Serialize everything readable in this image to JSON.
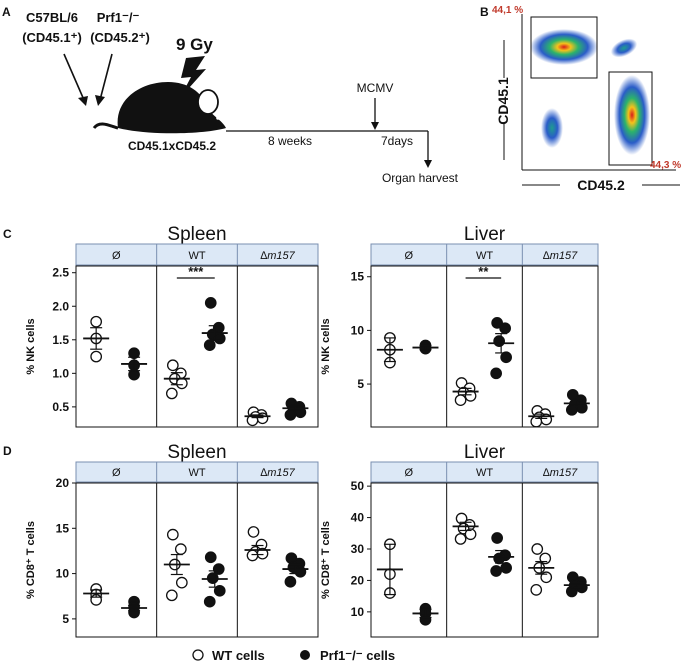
{
  "panel_letters": [
    "A",
    "B",
    "C",
    "D"
  ],
  "panelA": {
    "donor1_name": "C57BL/6",
    "donor1_marker": "(CD45.1⁺)",
    "donor2_name": "Prf1⁻/⁻",
    "donor2_marker": "(CD45.2⁺)",
    "irradiation": "9 Gy",
    "recipient": "CD45.1xCD45.2",
    "interval1": "8 weeks",
    "infection": "MCMV",
    "interval2": "7days",
    "endpoint": "Organ harvest"
  },
  "panelB": {
    "y_label": "CD45.1",
    "x_label": "CD45.2",
    "gate_top_pct": "44,1 %",
    "gate_bottom_pct": "44,3 %"
  },
  "groups": [
    "Ø",
    "WT",
    "∆m157"
  ],
  "legend": {
    "wt_label": "WT cells",
    "prf_label": "Prf1⁻/⁻ cells"
  },
  "colors": {
    "header_fill": "#dce8f6",
    "header_border": "#7a8fb0",
    "gate_text": "#c0392b",
    "dot": "#111111"
  },
  "chart_data": [
    {
      "type": "scatter",
      "panel": "C",
      "title": "Spleen",
      "ylabel": "% NK cells",
      "yticks": [
        "0.5",
        "1.0",
        "1.5",
        "2.0",
        "2.5"
      ],
      "ylim": [
        0.2,
        2.6
      ],
      "groups": [
        "Ø",
        "WT",
        "∆m157"
      ],
      "series": [
        {
          "name": "WT cells",
          "values": [
            [
              1.77,
              1.52,
              1.25
            ],
            [
              1.12,
              1.0,
              0.92,
              0.85,
              0.7
            ],
            [
              0.42,
              0.38,
              0.35,
              0.33,
              0.3
            ]
          ],
          "mean": [
            1.52,
            0.92,
            0.36
          ],
          "sem": [
            0.16,
            0.09,
            0.02
          ]
        },
        {
          "name": "Prf1⁻/⁻ cells",
          "values": [
            [
              1.3,
              1.12,
              0.98
            ],
            [
              2.05,
              1.68,
              1.58,
              1.52,
              1.42
            ],
            [
              0.55,
              0.5,
              0.45,
              0.42,
              0.38
            ]
          ],
          "mean": [
            1.14,
            1.6,
            0.48
          ],
          "sem": [
            0.1,
            0.11,
            0.03
          ]
        }
      ],
      "significance": [
        {
          "group": "WT",
          "label": "***"
        }
      ]
    },
    {
      "type": "scatter",
      "panel": "C",
      "title": "Liver",
      "ylabel": "% NK cells",
      "yticks": [
        "5",
        "10",
        "15"
      ],
      "ylim": [
        1.0,
        16.0
      ],
      "groups": [
        "Ø",
        "WT",
        "∆m157"
      ],
      "series": [
        {
          "name": "WT cells",
          "values": [
            [
              9.3,
              8.2,
              7.0
            ],
            [
              5.1,
              4.6,
              4.2,
              3.9,
              3.5
            ],
            [
              2.5,
              2.2,
              1.9,
              1.7,
              1.5
            ]
          ],
          "mean": [
            8.2,
            4.3,
            2.0
          ],
          "sem": [
            1.1,
            0.3,
            0.2
          ]
        },
        {
          "name": "Prf1⁻/⁻ cells",
          "values": [
            [
              8.6,
              8.4,
              8.3
            ],
            [
              10.7,
              10.2,
              9.0,
              7.5,
              6.0
            ],
            [
              4.0,
              3.5,
              3.1,
              2.8,
              2.6
            ]
          ],
          "mean": [
            8.4,
            8.8,
            3.2
          ],
          "sem": [
            0.2,
            0.9,
            0.3
          ]
        }
      ],
      "significance": [
        {
          "group": "WT",
          "label": "**"
        }
      ]
    },
    {
      "type": "scatter",
      "panel": "D",
      "title": "Spleen",
      "ylabel": "% CD8⁺ T cells",
      "yticks": [
        "5",
        "10",
        "15",
        "20"
      ],
      "ylim": [
        3.0,
        20.0
      ],
      "groups": [
        "Ø",
        "WT",
        "∆m157"
      ],
      "series": [
        {
          "name": "WT cells",
          "values": [
            [
              8.3,
              7.7,
              7.1
            ],
            [
              14.3,
              12.7,
              11.0,
              9.0,
              7.6
            ],
            [
              14.6,
              13.2,
              12.4,
              12.2,
              12.0
            ]
          ],
          "mean": [
            7.8,
            11.0,
            12.6
          ],
          "sem": [
            0.4,
            1.1,
            0.5
          ]
        },
        {
          "name": "Prf1⁻/⁻ cells",
          "values": [
            [
              6.9,
              6.3,
              5.7
            ],
            [
              11.8,
              10.5,
              9.5,
              8.1,
              6.9
            ],
            [
              11.7,
              11.1,
              10.7,
              10.2,
              9.1
            ]
          ],
          "mean": [
            6.2,
            9.4,
            10.5
          ],
          "sem": [
            0.3,
            0.9,
            0.5
          ]
        }
      ]
    },
    {
      "type": "scatter",
      "panel": "D",
      "title": "Liver",
      "ylabel": "% CD8⁺ T cells",
      "yticks": [
        "10",
        "20",
        "30",
        "40",
        "50"
      ],
      "ylim": [
        2.0,
        51.0
      ],
      "groups": [
        "Ø",
        "WT",
        "∆m157"
      ],
      "series": [
        {
          "name": "WT cells",
          "values": [
            [
              31.5,
              22.0,
              16.0
            ],
            [
              39.7,
              37.7,
              36.5,
              34.7,
              33.2
            ],
            [
              30.0,
              27.0,
              24.0,
              21.0,
              17.0
            ]
          ],
          "mean": [
            23.5,
            37.2,
            24.0
          ],
          "sem": [
            8.0,
            1.3,
            2.0
          ]
        },
        {
          "name": "Prf1⁻/⁻ cells",
          "values": [
            [
              11.0,
              9.5,
              7.5
            ],
            [
              33.5,
              28.0,
              27.0,
              24.0,
              23.0
            ],
            [
              21.0,
              19.5,
              18.5,
              17.8,
              16.5
            ]
          ],
          "mean": [
            9.5,
            27.5,
            18.5
          ],
          "sem": [
            1.3,
            2.0,
            0.8
          ]
        }
      ]
    }
  ]
}
